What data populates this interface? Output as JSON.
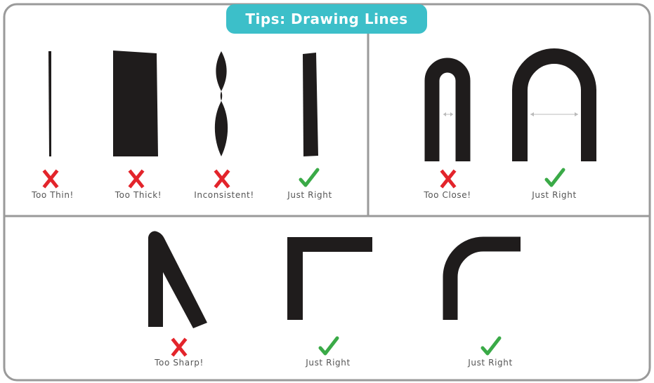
{
  "title": "Tips: Drawing Lines",
  "colors": {
    "accent": "#3cbfc9",
    "ink": "#1f1c1c",
    "bad": "#e3242b",
    "good": "#3aaa47",
    "frame": "#9a9a9a"
  },
  "sections": {
    "thickness": {
      "items": [
        {
          "verdict": "bad",
          "caption": "Too Thin!"
        },
        {
          "verdict": "bad",
          "caption": "Too Thick!"
        },
        {
          "verdict": "bad",
          "caption": "Inconsistent!"
        },
        {
          "verdict": "good",
          "caption": "Just Right"
        }
      ]
    },
    "spacing": {
      "items": [
        {
          "verdict": "bad",
          "caption": "Too Close!"
        },
        {
          "verdict": "good",
          "caption": "Just Right"
        }
      ]
    },
    "corners": {
      "items": [
        {
          "verdict": "bad",
          "caption": "Too Sharp!"
        },
        {
          "verdict": "good",
          "caption": "Just Right"
        },
        {
          "verdict": "good",
          "caption": "Just Right"
        }
      ]
    }
  }
}
